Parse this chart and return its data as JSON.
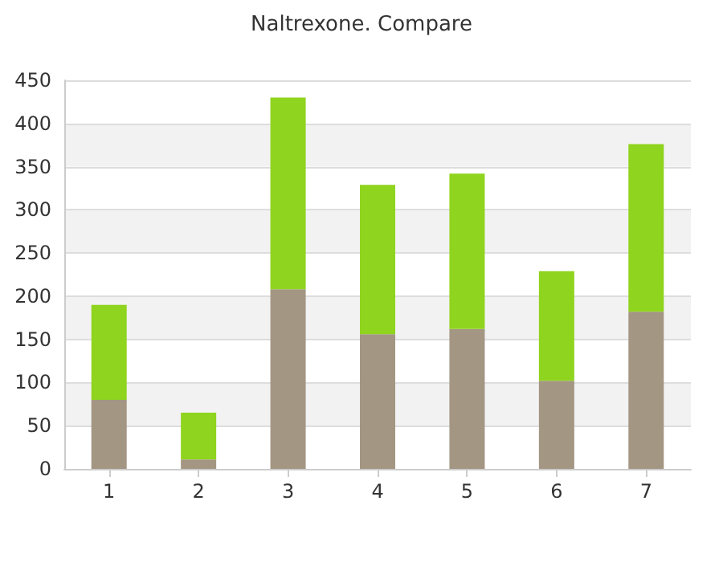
{
  "chart_data": {
    "type": "bar",
    "title": "Naltrexone. Compare",
    "categories": [
      "1",
      "2",
      "3",
      "4",
      "5",
      "6",
      "7"
    ],
    "stacked": true,
    "series": [
      {
        "color": "#a39683",
        "values": [
          80,
          11,
          208,
          156,
          162,
          102,
          182
        ]
      },
      {
        "color": "#8fd41e",
        "values": [
          110,
          54,
          222,
          173,
          180,
          127,
          194
        ]
      }
    ],
    "ylim": [
      0,
      450
    ],
    "yticks": [
      0,
      50,
      100,
      150,
      200,
      250,
      300,
      350,
      400,
      450
    ],
    "grid": "y"
  }
}
